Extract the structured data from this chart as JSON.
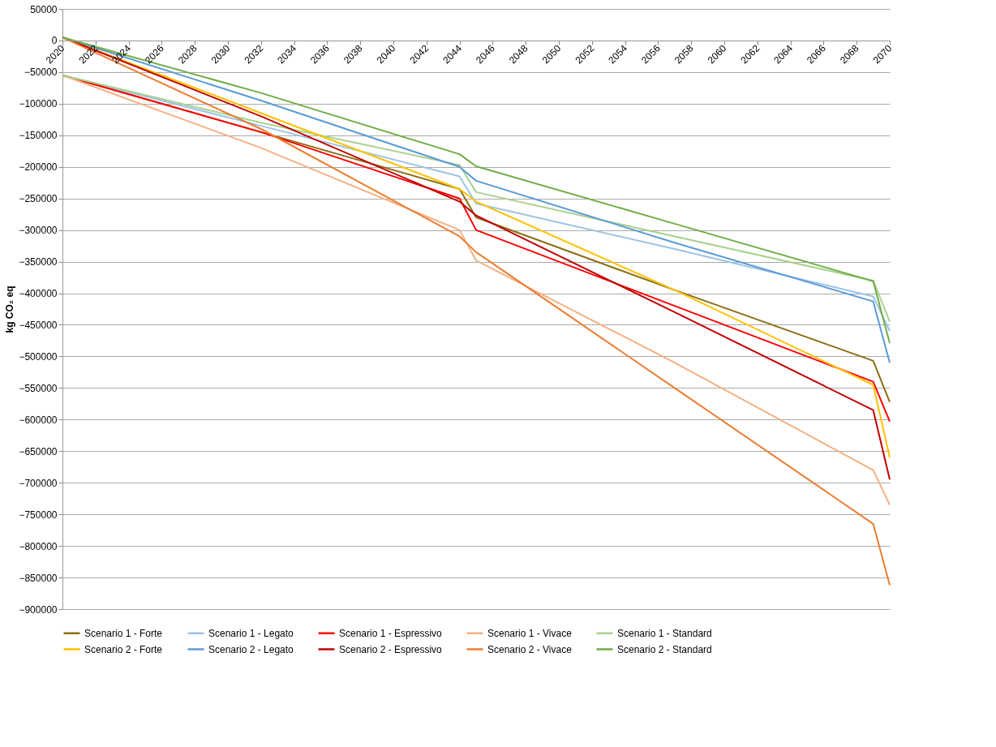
{
  "chart_data": {
    "type": "line",
    "ylabel": "kg CO₂ eq",
    "xlim": [
      2020,
      2070
    ],
    "xticks": [
      2020,
      2022,
      2024,
      2026,
      2028,
      2030,
      2032,
      2034,
      2036,
      2038,
      2040,
      2042,
      2044,
      2046,
      2048,
      2050,
      2052,
      2054,
      2056,
      2058,
      2060,
      2062,
      2064,
      2066,
      2068,
      2070
    ],
    "ylim": [
      -900000,
      50000
    ],
    "yticks": [
      -900000,
      -850000,
      -800000,
      -750000,
      -700000,
      -650000,
      -600000,
      -550000,
      -500000,
      -450000,
      -400000,
      -350000,
      -300000,
      -250000,
      -200000,
      -150000,
      -100000,
      -50000,
      0,
      50000
    ],
    "grid": "y",
    "legend": "bottom",
    "marker": "none",
    "line_style": "solid",
    "x": [
      2020,
      2032,
      2044,
      2045,
      2057,
      2069,
      2070
    ],
    "series": [
      {
        "name": "Scenario 1 - Forte",
        "color": "#8c6d14",
        "values": [
          -55000,
          -145000,
          -235000,
          -280000,
          -395000,
          -507000,
          -572000
        ]
      },
      {
        "name": "Scenario 1 - Legato",
        "color": "#9dc3e6",
        "values": [
          -55000,
          -135000,
          -215000,
          -258000,
          -330000,
          -405000,
          -460000
        ]
      },
      {
        "name": "Scenario 1 - Espressivo",
        "color": "#ff0000",
        "values": [
          -55000,
          -145000,
          -250000,
          -300000,
          -420000,
          -540000,
          -603000
        ]
      },
      {
        "name": "Scenario 1 - Vivace",
        "color": "#f4b183",
        "values": [
          -55000,
          -170000,
          -300000,
          -348000,
          -510000,
          -680000,
          -735000
        ]
      },
      {
        "name": "Scenario 1 - Standard",
        "color": "#a9d18e",
        "values": [
          -55000,
          -130000,
          -197000,
          -240000,
          -310000,
          -380000,
          -445000
        ]
      },
      {
        "name": "Scenario 2 - Forte",
        "color": "#ffc000",
        "values": [
          5000,
          -115000,
          -235000,
          -255000,
          -395000,
          -545000,
          -660000
        ]
      },
      {
        "name": "Scenario 2 - Legato",
        "color": "#5b9bd5",
        "values": [
          5000,
          -95000,
          -200000,
          -222000,
          -320000,
          -413000,
          -510000
        ]
      },
      {
        "name": "Scenario 2 - Espressivo",
        "color": "#c00000",
        "values": [
          5000,
          -120000,
          -255000,
          -277000,
          -430000,
          -585000,
          -695000
        ]
      },
      {
        "name": "Scenario 2 - Vivace",
        "color": "#ed7d31",
        "values": [
          5000,
          -140000,
          -310000,
          -335000,
          -550000,
          -765000,
          -862000
        ]
      },
      {
        "name": "Scenario 2 - Standard",
        "color": "#70ad47",
        "values": [
          5000,
          -83000,
          -180000,
          -199000,
          -290000,
          -381000,
          -479000
        ]
      }
    ]
  }
}
